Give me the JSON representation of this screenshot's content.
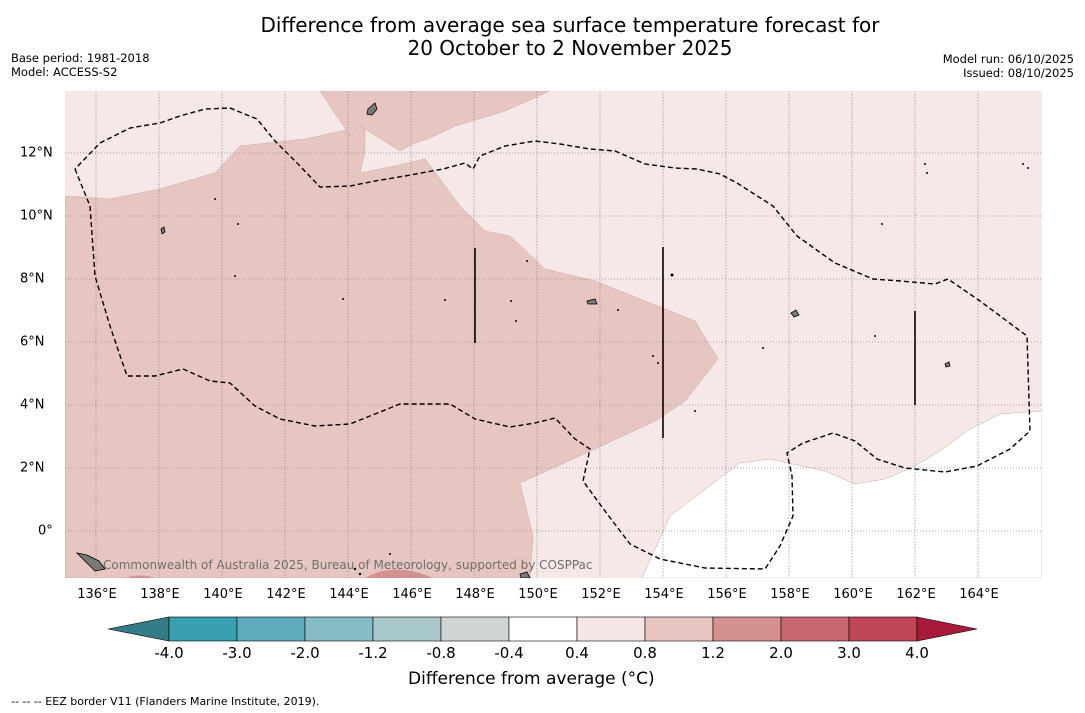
{
  "header": {
    "title_line1": "Difference from average sea surface temperature forecast for",
    "title_line2": "20 October to 2 November 2025",
    "base_period": "Base period: 1981-2018",
    "model": "Model: ACCESS-S2",
    "model_run": "Model run: 06/10/2025",
    "issued": "Issued: 08/10/2025"
  },
  "map": {
    "lon_ticks": [
      "136°E",
      "138°E",
      "140°E",
      "142°E",
      "144°E",
      "146°E",
      "148°E",
      "150°E",
      "152°E",
      "154°E",
      "156°E",
      "158°E",
      "160°E",
      "162°E",
      "164°E"
    ],
    "lat_ticks": [
      "12°N",
      "10°N",
      "8°N",
      "6°N",
      "4°N",
      "2°N",
      "0°"
    ],
    "credit": "Commonwealth of Australia 2025, Bureau of Meteorology, supported by COSPPac"
  },
  "colorbar": {
    "labels": [
      "-4.0",
      "-3.0",
      "-2.0",
      "-1.2",
      "-0.8",
      "-0.4",
      "0.4",
      "0.8",
      "1.2",
      "2.0",
      "3.0",
      "4.0"
    ],
    "colors": [
      "#3a9fb0",
      "#5eadbe",
      "#86bcc7",
      "#a9c8cb",
      "#d0d4d4",
      "#ffffff",
      "#f5e6e5",
      "#e7c5c1",
      "#d4918f",
      "#c96771",
      "#bf4656"
    ],
    "under_color": "#347d88",
    "over_color": "#a81a3a",
    "title": "Difference from average (°C)"
  },
  "footnote": "--  --  -- EEZ border V11 (Flanders Marine Institute, 2019).",
  "colors": {
    "light_pink": "#f5e8e6",
    "mid_pink": "#e7c6c1",
    "deep_pink": "#d4918f"
  }
}
